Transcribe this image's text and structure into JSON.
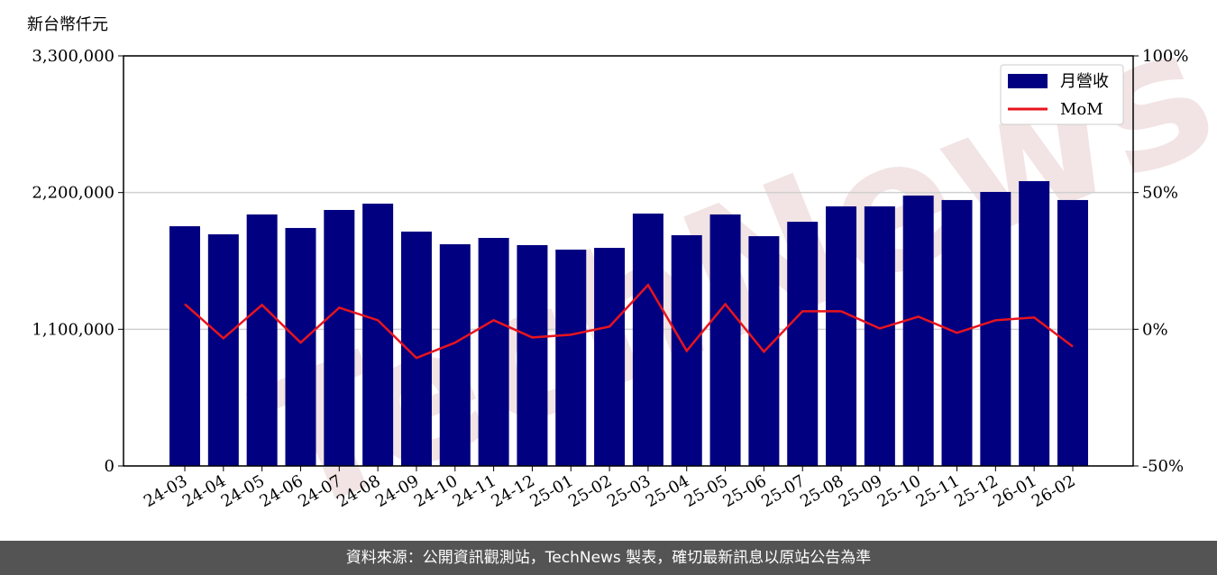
{
  "chart_data": {
    "type": "bar_line",
    "y_label": "新台幣仟元",
    "watermark": "TechNews",
    "categories": [
      "24-03",
      "24-04",
      "24-05",
      "24-06",
      "24-07",
      "24-08",
      "24-09",
      "24-10",
      "24-11",
      "24-12",
      "25-01",
      "25-02",
      "25-03",
      "25-04",
      "25-05",
      "25-06",
      "25-07",
      "25-08",
      "25-09",
      "25-10",
      "25-11",
      "25-12",
      "26-01",
      "26-02"
    ],
    "series": [
      {
        "name": "月營收",
        "type": "bar",
        "color": "#000080",
        "values": [
          1929000,
          1864000,
          2024000,
          1915000,
          2060000,
          2111000,
          1886000,
          1784000,
          1835000,
          1777000,
          1741000,
          1755000,
          2031000,
          1857000,
          2024000,
          1849000,
          1965000,
          2089000,
          2089000,
          2176000,
          2140000,
          2205000,
          2292000,
          2140000
        ]
      },
      {
        "name": "MoM",
        "type": "line",
        "axis": "y2",
        "color": "#e8141e",
        "values": [
          9.2,
          -3.3,
          8.9,
          -4.9,
          7.9,
          3.3,
          -10.5,
          -4.9,
          3.3,
          -3.0,
          -2.0,
          1.0,
          16.2,
          -7.9,
          9.2,
          -8.2,
          6.6,
          6.6,
          0.3,
          4.6,
          -1.3,
          3.3,
          4.3,
          -6.3
        ]
      }
    ],
    "ylim": [
      0,
      3300000
    ],
    "yticks": [
      0,
      {
        "value": 1100000,
        "label": "1,100,000"
      },
      {
        "value": 2200000,
        "label": "2,200,000"
      },
      {
        "value": 3300000,
        "label": "3,300,000"
      }
    ],
    "y2lim": [
      -50,
      100
    ],
    "y2ticks": [
      {
        "value": -50,
        "label": "-50%"
      },
      {
        "value": 0,
        "label": "0%"
      },
      {
        "value": 50,
        "label": "50%"
      },
      {
        "value": 100,
        "label": "100%"
      }
    ],
    "grid": true,
    "legend": "upper right",
    "footer": "資料來源：公開資訊觀測站，TechNews 製表，確切最新訊息以原站公告為準"
  }
}
